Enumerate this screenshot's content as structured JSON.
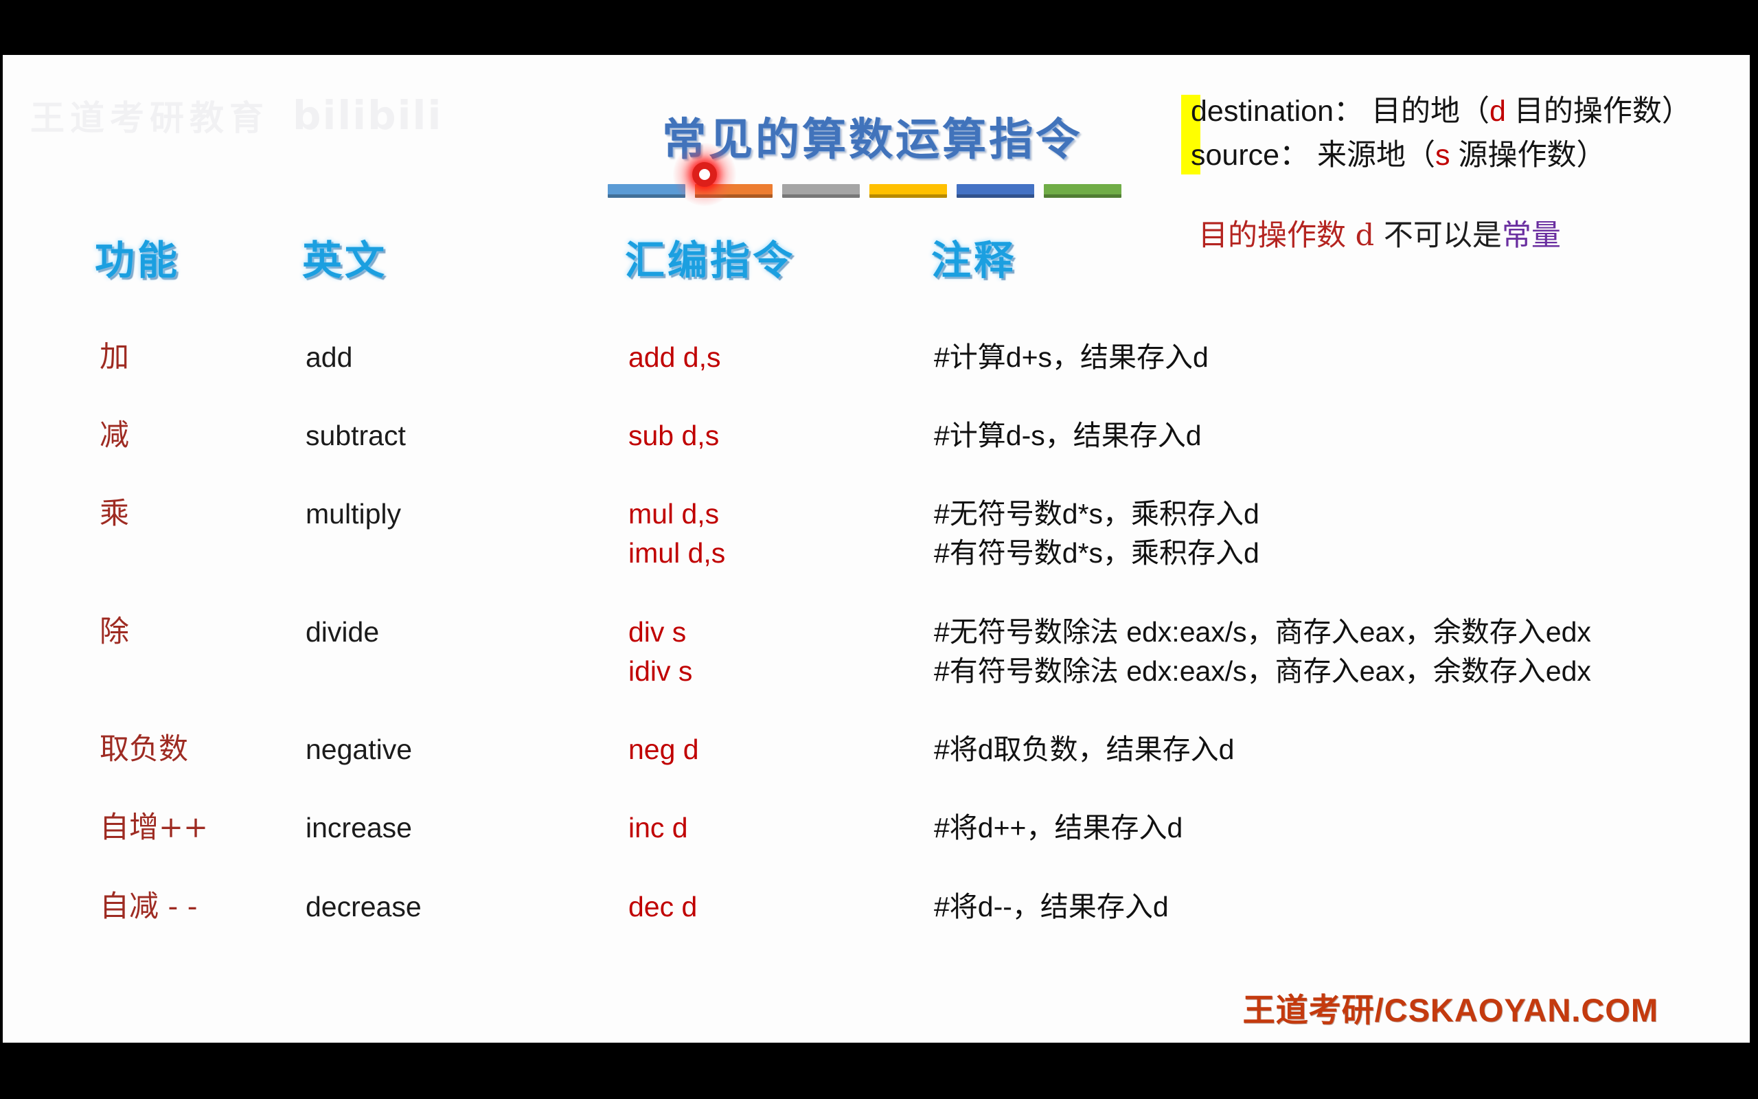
{
  "title": {
    "text": "常见的算数运算指令"
  },
  "title_bars": {
    "colors": [
      "#5B9BD5",
      "#ED7D31",
      "#A5A5A5",
      "#FFC000",
      "#4472C4",
      "#70AD47"
    ]
  },
  "legend": {
    "line1": {
      "black1": "destination：",
      "black2": " 目的地（",
      "red": "d",
      "black3": " 目的操作数）"
    },
    "line2": {
      "black1": "source：",
      "black2": " 来源地（",
      "red": "s",
      "black3": " 源操作数）"
    },
    "highlight_color": "#FFFF00"
  },
  "note": {
    "red": "目的操作数 d ",
    "black": "不可以是",
    "purple": "常量"
  },
  "watermark_topleft": {
    "cn": "王道考研教育",
    "logo": "bilibili"
  },
  "table": {
    "headers": [
      "功能",
      "英文",
      "汇编指令",
      "注释"
    ],
    "rows": [
      {
        "func": "加",
        "english": "add",
        "asm": [
          "add d,s"
        ],
        "comment": [
          "#计算d+s，结果存入d"
        ]
      },
      {
        "func": "减",
        "english": "subtract",
        "asm": [
          "sub d,s"
        ],
        "comment": [
          "#计算d-s，结果存入d"
        ]
      },
      {
        "func": "乘",
        "english": "multiply",
        "asm": [
          "mul d,s",
          "imul d,s"
        ],
        "comment": [
          "#无符号数d*s，乘积存入d",
          "#有符号数d*s，乘积存入d"
        ]
      },
      {
        "func": "除",
        "english": "divide",
        "asm": [
          "div s",
          "idiv s"
        ],
        "comment": [
          "#无符号数除法 edx:eax/s，商存入eax，余数存入edx",
          "#有符号数除法 edx:eax/s，商存入eax，余数存入edx"
        ]
      },
      {
        "func": "取负数",
        "english": "negative",
        "asm": [
          "neg d"
        ],
        "comment": [
          "#将d取负数，结果存入d"
        ]
      },
      {
        "func": "自增++",
        "english": "increase",
        "asm": [
          "inc d"
        ],
        "comment": [
          "#将d++，结果存入d"
        ]
      },
      {
        "func": "自减 - -",
        "english": "decrease",
        "asm": [
          "dec d"
        ],
        "comment": [
          "#将d--，结果存入d"
        ]
      }
    ]
  },
  "footer": {
    "watermark": "王道考研/CSKAOYAN.COM"
  },
  "colors": {
    "title_blue": "#4173BB",
    "header_blue": "#1B9FE0",
    "function_dark_red": "#9E2B22",
    "assembly_red": "#C00000",
    "note_red": "#B42420",
    "note_purple": "#6A2FA0",
    "footer_red": "#C43A0E",
    "laser_red": "#DD1F1A",
    "highlight_yellow": "#FFFF00"
  }
}
